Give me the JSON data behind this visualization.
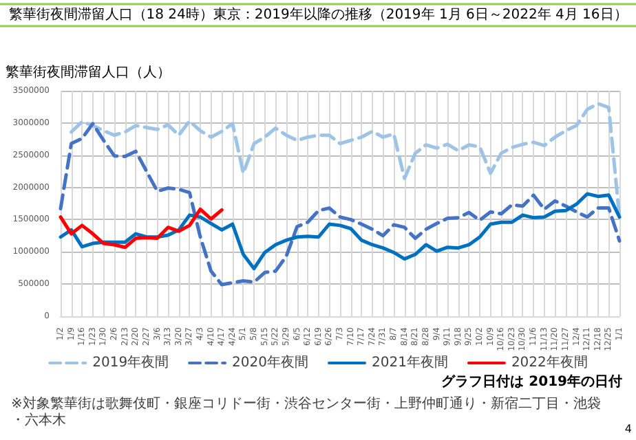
{
  "chart_data": {
    "type": "line",
    "title": "繁華街夜間滞留人口（18 24時）東京：2019年以降の推移（2019年 1月 6日～2022年 4月 16日）",
    "ylabel": "繁華街夜間滞留人口（人）",
    "categories": [
      "1/2",
      "1/9",
      "1/16",
      "1/23",
      "1/30",
      "2/6",
      "2/13",
      "2/20",
      "2/27",
      "3/6",
      "3/13",
      "3/20",
      "3/27",
      "4/3",
      "4/10",
      "4/17",
      "4/24",
      "5/1",
      "5/8",
      "5/15",
      "5/22",
      "5/29",
      "6/5",
      "6/12",
      "6/19",
      "6/26",
      "7/3",
      "7/10",
      "7/17",
      "7/24",
      "7/31",
      "8/7",
      "8/14",
      "8/21",
      "8/28",
      "9/4",
      "9/11",
      "9/18",
      "9/25",
      "10/2",
      "10/9",
      "10/16",
      "10/23",
      "10/30",
      "11/6",
      "11/13",
      "11/20",
      "11/27",
      "12/4",
      "12/11",
      "12/18",
      "12/25",
      "1/1"
    ],
    "series": [
      {
        "name": "2019年夜間",
        "color": "#9dc3e6",
        "line_style": "dashed",
        "values": [
          null,
          2860000,
          3020000,
          2960000,
          2880000,
          2810000,
          2860000,
          2960000,
          2930000,
          2900000,
          2970000,
          2810000,
          3030000,
          2880000,
          2780000,
          2870000,
          2990000,
          2220000,
          2680000,
          2780000,
          2920000,
          2810000,
          2730000,
          2780000,
          2810000,
          2810000,
          2680000,
          2730000,
          2780000,
          2870000,
          2780000,
          2830000,
          2140000,
          2530000,
          2660000,
          2610000,
          2670000,
          2570000,
          2660000,
          2630000,
          2220000,
          2530000,
          2620000,
          2670000,
          2700000,
          2650000,
          2780000,
          2880000,
          2960000,
          3210000,
          3300000,
          3240000,
          1540000
        ]
      },
      {
        "name": "2020年夜間",
        "color": "#4472c4",
        "line_style": "dashed",
        "values": [
          1670000,
          2680000,
          2760000,
          2990000,
          2730000,
          2490000,
          2480000,
          2560000,
          2250000,
          1940000,
          1990000,
          1970000,
          1920000,
          1230000,
          700000,
          490000,
          520000,
          550000,
          530000,
          680000,
          700000,
          930000,
          1390000,
          1460000,
          1640000,
          1680000,
          1540000,
          1500000,
          1430000,
          1350000,
          1250000,
          1420000,
          1380000,
          1210000,
          1350000,
          1440000,
          1520000,
          1530000,
          1610000,
          1490000,
          1620000,
          1590000,
          1730000,
          1710000,
          1880000,
          1660000,
          1790000,
          1710000,
          1620000,
          1540000,
          1680000,
          1680000,
          1170000
        ]
      },
      {
        "name": "2021年夜間",
        "color": "#0070c0",
        "line_style": "solid",
        "values": [
          1230000,
          1340000,
          1080000,
          1130000,
          1150000,
          1150000,
          1150000,
          1280000,
          1230000,
          1230000,
          1260000,
          1340000,
          1570000,
          1540000,
          1440000,
          1340000,
          1430000,
          960000,
          740000,
          990000,
          1110000,
          1180000,
          1230000,
          1240000,
          1230000,
          1430000,
          1410000,
          1360000,
          1180000,
          1110000,
          1060000,
          990000,
          890000,
          960000,
          1110000,
          1010000,
          1070000,
          1060000,
          1110000,
          1230000,
          1430000,
          1460000,
          1460000,
          1570000,
          1530000,
          1540000,
          1630000,
          1640000,
          1740000,
          1900000,
          1860000,
          1880000,
          1540000
        ]
      },
      {
        "name": "2022年夜間",
        "color": "#ff0000",
        "line_style": "solid",
        "values": [
          1540000,
          1280000,
          1410000,
          1280000,
          1130000,
          1110000,
          1070000,
          1210000,
          1220000,
          1210000,
          1380000,
          1320000,
          1410000,
          1660000,
          1510000,
          1650000,
          null,
          null,
          null,
          null,
          null,
          null,
          null,
          null,
          null,
          null,
          null,
          null,
          null,
          null,
          null,
          null,
          null,
          null,
          null,
          null,
          null,
          null,
          null,
          null,
          null,
          null,
          null,
          null,
          null,
          null,
          null,
          null,
          null,
          null,
          null,
          null,
          null
        ]
      }
    ],
    "ylim": [
      0,
      3500000
    ],
    "yticks": [
      0,
      500000,
      1000000,
      1500000,
      2000000,
      2500000,
      3000000,
      3500000
    ],
    "grid": true,
    "legend": "bottom",
    "marker": "none",
    "annotations": [
      "※対象繁華街は歌舞伎町・銀座コリドー街・渋谷センター街・上野仲町通り・新宿二丁目・池袋・六本木",
      "グラフ日付は 2019年の日付",
      "4"
    ]
  }
}
